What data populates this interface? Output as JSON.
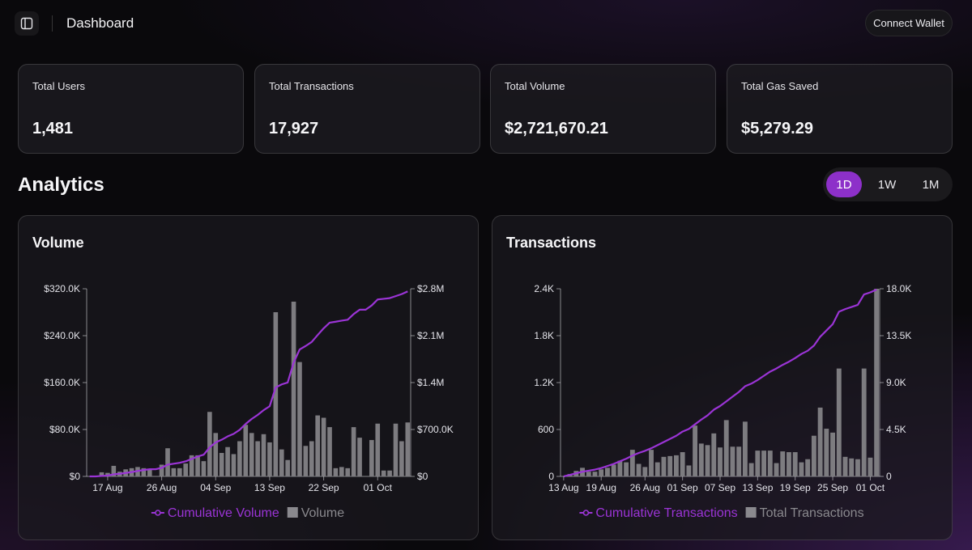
{
  "header": {
    "sidebar_toggle_icon": "sidebar-panel-icon",
    "title": "Dashboard",
    "connect_label": "Connect Wallet"
  },
  "stats": [
    {
      "label": "Total Users",
      "value": "1,481"
    },
    {
      "label": "Total Transactions",
      "value": "17,927"
    },
    {
      "label": "Total Volume",
      "value": "$2,721,670.21"
    },
    {
      "label": "Total Gas Saved",
      "value": "$5,279.29"
    }
  ],
  "analytics": {
    "title": "Analytics",
    "ranges": [
      "1D",
      "1W",
      "1M"
    ],
    "active_range": "1D"
  },
  "colors": {
    "accent": "#8d30c9",
    "line": "#9b34d6",
    "bar": "#7d7c80",
    "bar_legend": "#8a898e"
  },
  "chart_data": [
    {
      "type": "bar",
      "title": "Volume",
      "x_ticks": [
        "17 Aug",
        "26 Aug",
        "04 Sep",
        "13 Sep",
        "22 Sep",
        "01 Oct"
      ],
      "x_tick_index": [
        3,
        12,
        21,
        30,
        39,
        48
      ],
      "y_left": {
        "ticks": [
          "$0",
          "$80.0K",
          "$160.0K",
          "$240.0K",
          "$320.0K"
        ],
        "max": 320000
      },
      "y_right": {
        "ticks": [
          "$0",
          "$700.0K",
          "$1.4M",
          "$2.1M",
          "$2.8M"
        ],
        "max": 2800000
      },
      "grid": false,
      "legend_position": "bottom",
      "legend": [
        {
          "name": "Cumulative Volume",
          "kind": "line"
        },
        {
          "name": "Volume",
          "kind": "bar"
        }
      ],
      "series": [
        {
          "name": "Volume",
          "kind": "bar",
          "axis": "left",
          "values": [
            0,
            0,
            7000,
            6000,
            18000,
            8000,
            12000,
            14000,
            16000,
            14000,
            12000,
            0,
            20000,
            48000,
            14000,
            14000,
            22000,
            36000,
            36000,
            26000,
            110000,
            74000,
            40000,
            50000,
            38000,
            60000,
            88000,
            74000,
            60000,
            72000,
            58000,
            280000,
            46000,
            28000,
            298000,
            195000,
            52000,
            60000,
            104000,
            100000,
            84000,
            14000,
            16000,
            14000,
            84000,
            66000,
            0,
            62000,
            90000,
            10000,
            10000,
            90000,
            60000,
            92000
          ]
        },
        {
          "name": "Cumulative Volume",
          "kind": "line",
          "axis": "right",
          "values": [
            0,
            0,
            7000,
            13000,
            31000,
            39000,
            51000,
            65000,
            81000,
            95000,
            107000,
            107000,
            127000,
            175000,
            189000,
            203000,
            225000,
            261000,
            297000,
            323000,
            433000,
            507000,
            547000,
            597000,
            635000,
            695000,
            783000,
            857000,
            917000,
            989000,
            1047000,
            1327000,
            1373000,
            1401000,
            1699000,
            1894000,
            1946000,
            2006000,
            2110000,
            2210000,
            2294000,
            2308000,
            2324000,
            2338000,
            2422000,
            2488000,
            2488000,
            2550000,
            2640000,
            2650000,
            2660000,
            2690000,
            2720000,
            2760000
          ]
        }
      ]
    },
    {
      "type": "bar",
      "title": "Transactions",
      "x_ticks": [
        "13 Aug",
        "19 Aug",
        "26 Aug",
        "01 Sep",
        "07 Sep",
        "13 Sep",
        "19 Sep",
        "25 Sep",
        "01 Oct"
      ],
      "x_tick_index": [
        0,
        6,
        13,
        19,
        25,
        31,
        37,
        43,
        49
      ],
      "y_left": {
        "ticks": [
          "0",
          "600",
          "1.2K",
          "1.8K",
          "2.4K"
        ],
        "max": 2400
      },
      "y_right": {
        "ticks": [
          "0",
          "4.5K",
          "9.0K",
          "13.5K",
          "18.0K"
        ],
        "max": 18000
      },
      "grid": false,
      "legend_position": "bottom",
      "legend": [
        {
          "name": "Cumulative Transactions",
          "kind": "line"
        },
        {
          "name": "Total Transactions",
          "kind": "bar"
        }
      ],
      "series": [
        {
          "name": "Total Transactions",
          "kind": "bar",
          "axis": "left",
          "values": [
            0,
            30,
            70,
            110,
            60,
            60,
            90,
            110,
            150,
            200,
            180,
            340,
            160,
            120,
            340,
            180,
            250,
            260,
            270,
            310,
            140,
            650,
            420,
            400,
            550,
            370,
            720,
            380,
            380,
            700,
            170,
            330,
            330,
            330,
            170,
            320,
            310,
            310,
            180,
            220,
            520,
            880,
            610,
            560,
            1380,
            250,
            230,
            220,
            1380,
            240,
            2400
          ]
        },
        {
          "name": "Cumulative Transactions",
          "kind": "line",
          "axis": "right",
          "values": [
            0,
            150,
            300,
            450,
            550,
            650,
            800,
            1000,
            1200,
            1450,
            1700,
            2000,
            2250,
            2450,
            2700,
            3000,
            3300,
            3600,
            3900,
            4300,
            4550,
            5000,
            5450,
            5850,
            6400,
            6750,
            7200,
            7650,
            8100,
            8650,
            8900,
            9250,
            9650,
            10050,
            10350,
            10700,
            11000,
            11350,
            11750,
            12050,
            12550,
            13400,
            14000,
            14600,
            15800,
            16050,
            16250,
            16450,
            17450,
            17650,
            17927
          ]
        }
      ]
    }
  ]
}
